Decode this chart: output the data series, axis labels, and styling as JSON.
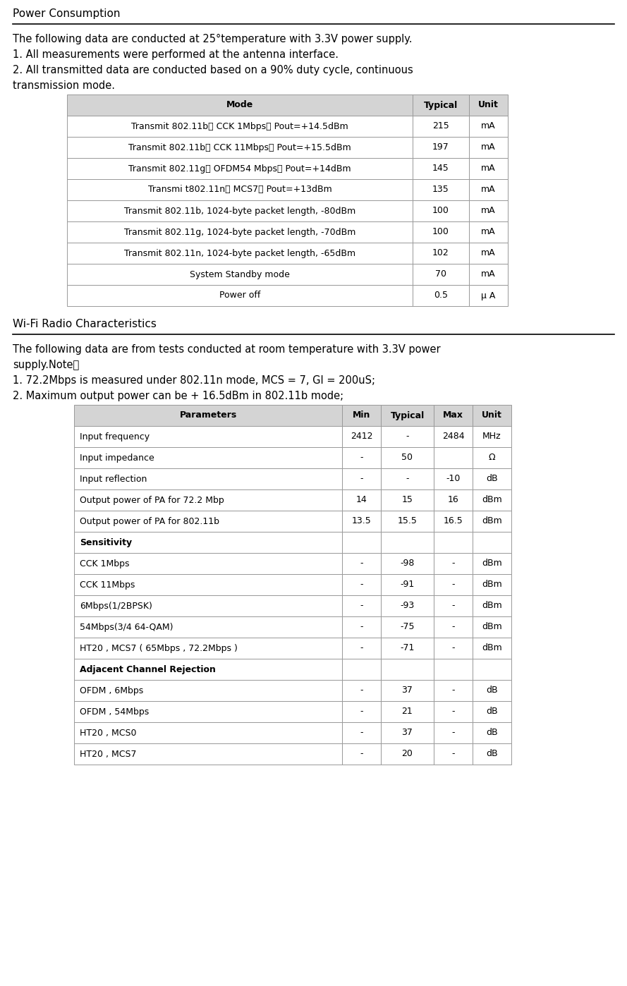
{
  "title1": "Power Consumption",
  "desc1_line1": "The following data are conducted at 25°temperature with 3.3V power supply.",
  "desc1_line2": "1. All measurements were performed at the antenna interface.",
  "desc1_line3": "2. All transmitted data are conducted based on a 90% duty cycle, continuous",
  "desc1_line4": "transmission mode.",
  "table1_header": [
    "Mode",
    "Typical",
    "Unit"
  ],
  "table1_rows": [
    [
      "Transmit 802.11b， CCK 1Mbps， Pout=+14.5dBm",
      "215",
      "mA"
    ],
    [
      "Transmit 802.11b， CCK 11Mbps， Pout=+15.5dBm",
      "197",
      "mA"
    ],
    [
      "Transmit 802.11g， OFDM54 Mbps， Pout=+14dBm",
      "145",
      "mA"
    ],
    [
      "Transmi t802.11n， MCS7， Pout=+13dBm",
      "135",
      "mA"
    ],
    [
      "Transmit 802.11b, 1024-byte packet length, -80dBm",
      "100",
      "mA"
    ],
    [
      "Transmit 802.11g, 1024-byte packet length, -70dBm",
      "100",
      "mA"
    ],
    [
      "Transmit 802.11n, 1024-byte packet length, -65dBm",
      "102",
      "mA"
    ],
    [
      "System Standby mode",
      "70",
      "mA"
    ],
    [
      "Power off",
      "0.5",
      "μ A"
    ]
  ],
  "title2": "Wi-Fi Radio Characteristics",
  "desc2_line1": "The following data are from tests conducted at room temperature with 3.3V power",
  "desc2_line2": "supply.Note：",
  "desc2_line3": "1. 72.2Mbps is measured under 802.11n mode, MCS = 7, GI = 200uS;",
  "desc2_line4": "2. Maximum output power can be + 16.5dBm in 802.11b mode;",
  "table2_header": [
    "Parameters",
    "Min",
    "Typical",
    "Max",
    "Unit"
  ],
  "table2_rows": [
    [
      "Input frequency",
      "2412",
      "-",
      "2484",
      "MHz"
    ],
    [
      "Input impedance",
      "-",
      "50",
      "",
      "Ω"
    ],
    [
      "Input reflection",
      "-",
      "-",
      "-10",
      "dB"
    ],
    [
      "Output power of PA for 72.2 Mbp",
      "14",
      "15",
      "16",
      "dBm"
    ],
    [
      "Output power of PA for 802.11b",
      "13.5",
      "15.5",
      "16.5",
      "dBm"
    ],
    [
      "Sensitivity",
      "",
      "",
      "",
      ""
    ],
    [
      "CCK 1Mbps",
      "-",
      "-98",
      "-",
      "dBm"
    ],
    [
      "CCK 11Mbps",
      "-",
      "-91",
      "-",
      "dBm"
    ],
    [
      "6Mbps(1/2BPSK)",
      "-",
      "-93",
      "-",
      "dBm"
    ],
    [
      "54Mbps(3/4 64-QAM)",
      "-",
      "-75",
      "-",
      "dBm"
    ],
    [
      "HT20 , MCS7 ( 65Mbps , 72.2Mbps )",
      "-",
      "-71",
      "-",
      "dBm"
    ],
    [
      "Adjacent Channel Rejection",
      "",
      "",
      "",
      ""
    ],
    [
      "OFDM , 6Mbps",
      "-",
      "37",
      "-",
      "dB"
    ],
    [
      "OFDM , 54Mbps",
      "-",
      "21",
      "-",
      "dB"
    ],
    [
      "HT20 , MCS0",
      "-",
      "37",
      "-",
      "dB"
    ],
    [
      "HT20 , MCS7",
      "-",
      "20",
      "-",
      "dB"
    ]
  ],
  "bg_color": "#ffffff",
  "table_header_bg": "#d4d4d4",
  "table_row_bg": "#ffffff",
  "table_border_color": "#999999",
  "section_bold_rows": [
    5,
    11
  ],
  "text_color": "#000000"
}
